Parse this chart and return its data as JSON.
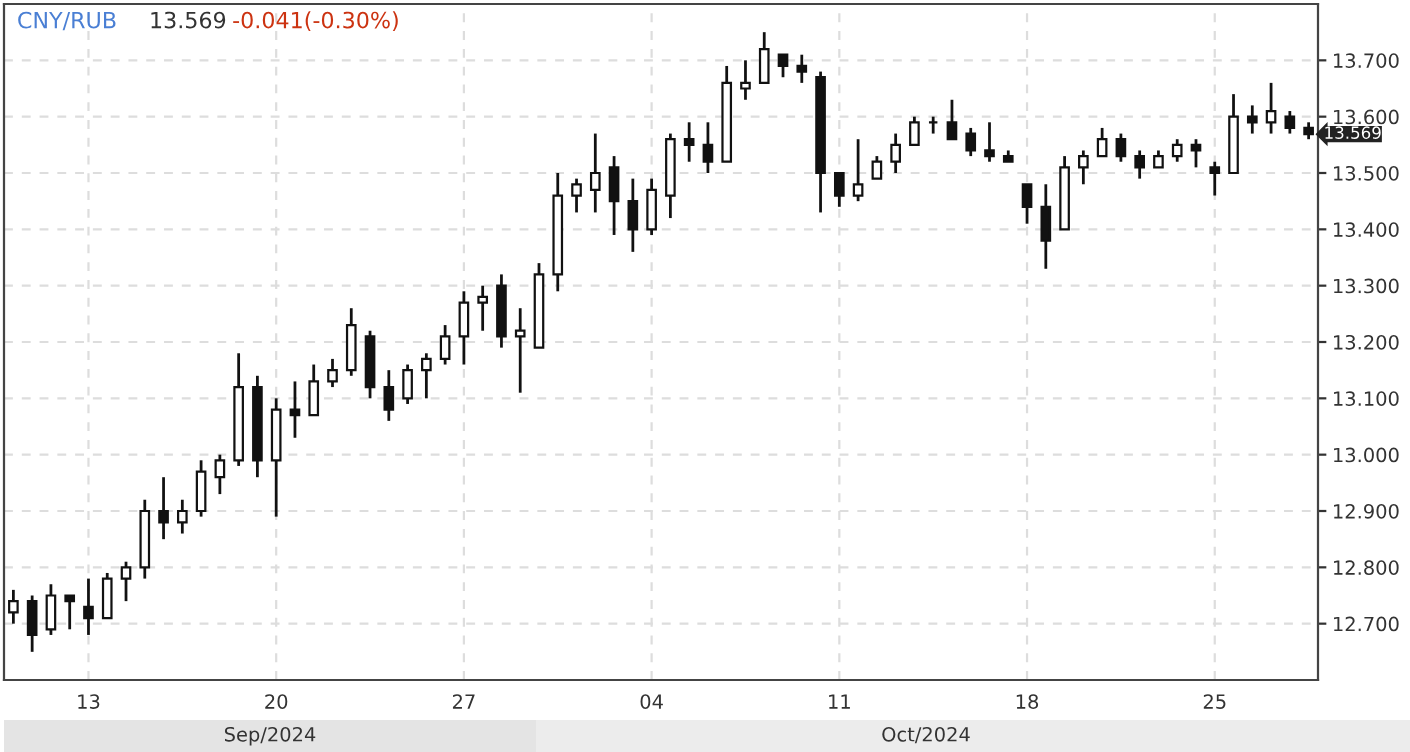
{
  "chart_data": {
    "type": "candlestick",
    "title": "CNY/RUB",
    "annotations": [
      "13.569",
      "-0.041(-0.30%)",
      "Sep/2024",
      "Oct/2024",
      "13.569"
    ],
    "categories": [
      null,
      null,
      null,
      null,
      "13",
      null,
      null,
      null,
      null,
      null,
      null,
      null,
      null,
      null,
      "20",
      null,
      null,
      null,
      null,
      null,
      null,
      null,
      null,
      null,
      "27",
      null,
      null,
      null,
      null,
      null,
      null,
      null,
      null,
      null,
      "04",
      null,
      null,
      null,
      null,
      null,
      null,
      null,
      null,
      null,
      "11",
      null,
      null,
      null,
      null,
      null,
      null,
      null,
      null,
      null,
      "18",
      null,
      null,
      null,
      null,
      null,
      null,
      null,
      null,
      null,
      "25",
      null,
      null,
      null,
      null,
      null
    ],
    "ohlc": [
      [
        12.72,
        12.76,
        12.7,
        12.74
      ],
      [
        12.74,
        12.75,
        12.65,
        12.68
      ],
      [
        12.69,
        12.77,
        12.68,
        12.75
      ],
      [
        12.75,
        12.75,
        12.69,
        12.74
      ],
      [
        12.73,
        12.78,
        12.68,
        12.71
      ],
      [
        12.71,
        12.79,
        12.71,
        12.78
      ],
      [
        12.78,
        12.81,
        12.74,
        12.8
      ],
      [
        12.8,
        12.92,
        12.78,
        12.9
      ],
      [
        12.9,
        12.96,
        12.85,
        12.88
      ],
      [
        12.88,
        12.92,
        12.86,
        12.9
      ],
      [
        12.9,
        12.99,
        12.89,
        12.97
      ],
      [
        12.96,
        13.0,
        12.93,
        12.99
      ],
      [
        12.99,
        13.18,
        12.98,
        13.12
      ],
      [
        13.12,
        13.14,
        12.96,
        12.99
      ],
      [
        12.99,
        13.1,
        12.89,
        13.08
      ],
      [
        13.08,
        13.13,
        13.03,
        13.07
      ],
      [
        13.07,
        13.16,
        13.07,
        13.13
      ],
      [
        13.13,
        13.17,
        13.12,
        13.15
      ],
      [
        13.15,
        13.26,
        13.14,
        13.23
      ],
      [
        13.21,
        13.22,
        13.1,
        13.12
      ],
      [
        13.12,
        13.15,
        13.06,
        13.08
      ],
      [
        13.1,
        13.16,
        13.09,
        13.15
      ],
      [
        13.15,
        13.18,
        13.1,
        13.17
      ],
      [
        13.17,
        13.23,
        13.16,
        13.21
      ],
      [
        13.21,
        13.29,
        13.16,
        13.27
      ],
      [
        13.27,
        13.3,
        13.22,
        13.28
      ],
      [
        13.3,
        13.32,
        13.19,
        13.21
      ],
      [
        13.21,
        13.26,
        13.11,
        13.22
      ],
      [
        13.19,
        13.34,
        13.19,
        13.32
      ],
      [
        13.32,
        13.5,
        13.29,
        13.46
      ],
      [
        13.46,
        13.49,
        13.43,
        13.48
      ],
      [
        13.47,
        13.57,
        13.43,
        13.5
      ],
      [
        13.51,
        13.53,
        13.39,
        13.45
      ],
      [
        13.45,
        13.49,
        13.36,
        13.4
      ],
      [
        13.4,
        13.49,
        13.39,
        13.47
      ],
      [
        13.46,
        13.57,
        13.42,
        13.56
      ],
      [
        13.56,
        13.59,
        13.52,
        13.55
      ],
      [
        13.55,
        13.59,
        13.5,
        13.52
      ],
      [
        13.52,
        13.69,
        13.52,
        13.66
      ],
      [
        13.65,
        13.7,
        13.63,
        13.66
      ],
      [
        13.66,
        13.75,
        13.66,
        13.72
      ],
      [
        13.71,
        13.71,
        13.67,
        13.69
      ],
      [
        13.69,
        13.71,
        13.66,
        13.68
      ],
      [
        13.67,
        13.68,
        13.43,
        13.5
      ],
      [
        13.5,
        13.5,
        13.44,
        13.46
      ],
      [
        13.46,
        13.56,
        13.45,
        13.48
      ],
      [
        13.49,
        13.53,
        13.49,
        13.52
      ],
      [
        13.52,
        13.57,
        13.5,
        13.55
      ],
      [
        13.55,
        13.6,
        13.55,
        13.59
      ],
      [
        13.59,
        13.6,
        13.57,
        13.59
      ],
      [
        13.59,
        13.63,
        13.56,
        13.56
      ],
      [
        13.57,
        13.58,
        13.53,
        13.54
      ],
      [
        13.54,
        13.59,
        13.52,
        13.53
      ],
      [
        13.53,
        13.54,
        13.52,
        13.52
      ],
      [
        13.48,
        13.48,
        13.41,
        13.44
      ],
      [
        13.44,
        13.48,
        13.33,
        13.38
      ],
      [
        13.4,
        13.53,
        13.4,
        13.51
      ],
      [
        13.51,
        13.54,
        13.48,
        13.53
      ],
      [
        13.53,
        13.58,
        13.53,
        13.56
      ],
      [
        13.56,
        13.57,
        13.52,
        13.53
      ],
      [
        13.53,
        13.54,
        13.49,
        13.51
      ],
      [
        13.51,
        13.54,
        13.51,
        13.53
      ],
      [
        13.53,
        13.56,
        13.52,
        13.55
      ],
      [
        13.55,
        13.56,
        13.51,
        13.54
      ],
      [
        13.51,
        13.52,
        13.46,
        13.5
      ],
      [
        13.5,
        13.64,
        13.5,
        13.6
      ],
      [
        13.6,
        13.62,
        13.57,
        13.59
      ],
      [
        13.59,
        13.66,
        13.57,
        13.61
      ],
      [
        13.6,
        13.61,
        13.57,
        13.58
      ],
      [
        13.58,
        13.59,
        13.56,
        13.569
      ]
    ],
    "color": "#111111",
    "ylim": [
      12.6,
      13.8
    ],
    "yticks": [
      {
        "value": 12.7,
        "label": "12.700"
      },
      {
        "value": 12.8,
        "label": "12.800"
      },
      {
        "value": 12.9,
        "label": "12.900"
      },
      {
        "value": 13.0,
        "label": "13.000"
      },
      {
        "value": 13.1,
        "label": "13.100"
      },
      {
        "value": 13.2,
        "label": "13.200"
      },
      {
        "value": 13.3,
        "label": "13.300"
      },
      {
        "value": 13.4,
        "label": "13.400"
      },
      {
        "value": 13.5,
        "label": "13.500"
      },
      {
        "value": 13.6,
        "label": "13.600"
      },
      {
        "value": 13.7,
        "label": "13.700"
      }
    ],
    "grid": true
  }
}
